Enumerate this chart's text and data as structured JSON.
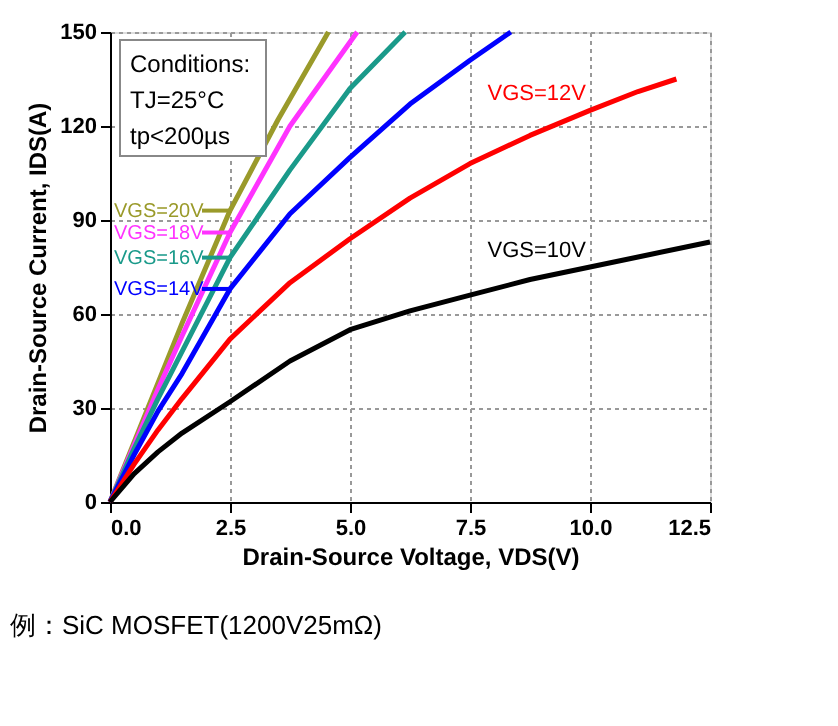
{
  "chart_data": {
    "type": "line",
    "xlabel": "Drain-Source Voltage, VDS(V)",
    "ylabel": "Drain-Source Current, IDS(A)",
    "xlim": [
      0,
      12.5
    ],
    "ylim": [
      0,
      150
    ],
    "xticks": [
      {
        "value": 0,
        "label": "0.0"
      },
      {
        "value": 2.5,
        "label": "2.5"
      },
      {
        "value": 5,
        "label": "5.0"
      },
      {
        "value": 7.5,
        "label": "7.5"
      },
      {
        "value": 10,
        "label": "10.0"
      },
      {
        "value": 12.5,
        "label": "12.5"
      }
    ],
    "yticks": [
      0,
      30,
      60,
      90,
      120,
      150
    ],
    "grid": true,
    "line_style": "solid",
    "legend": "left",
    "annotations": [
      "Conditions:",
      "TJ=25°C",
      "tp<200µs",
      "例：SiC MOSFET(1200V25mΩ)"
    ],
    "series": [
      {
        "name": "VGS=20V",
        "color": "#9a9a2a",
        "x": [
          0,
          0.5,
          1,
          1.5,
          2.5,
          3.5,
          4.55
        ],
        "values": [
          0,
          19,
          38,
          57,
          93,
          122,
          150
        ]
      },
      {
        "name": "VGS=18V",
        "color": "#ff33ff",
        "x": [
          0,
          0.5,
          1,
          1.5,
          2.5,
          3.75,
          5.15
        ],
        "values": [
          0,
          18,
          36,
          53,
          86,
          120,
          150
        ]
      },
      {
        "name": "VGS=16V",
        "color": "#1a9a8a",
        "x": [
          0,
          0.5,
          1,
          1.5,
          2.5,
          3.75,
          5,
          6.15
        ],
        "values": [
          0,
          17,
          33,
          48,
          78,
          106,
          132,
          150
        ]
      },
      {
        "name": "VGS=14V",
        "color": "#0000ff",
        "x": [
          0,
          0.5,
          1,
          1.5,
          2.5,
          3.75,
          5,
          6.25,
          7.5,
          8.35
        ],
        "values": [
          0,
          15,
          29,
          41,
          68,
          92,
          110,
          127,
          141,
          150
        ]
      },
      {
        "name": "VGS=12V",
        "color": "#ff0000",
        "x": [
          0,
          0.5,
          1,
          1.5,
          2.5,
          3.75,
          5,
          6.25,
          7.5,
          8.75,
          10,
          11,
          11.8
        ],
        "values": [
          0,
          12,
          23,
          33,
          52,
          70,
          84,
          97,
          108,
          117,
          125,
          131,
          135
        ]
      },
      {
        "name": "VGS=10V",
        "color": "#000000",
        "x": [
          0,
          0.5,
          1,
          1.5,
          2.5,
          3.75,
          5,
          6.25,
          7.5,
          8.75,
          10,
          11.25,
          12.5
        ],
        "values": [
          0,
          9,
          16,
          22,
          32,
          45,
          55,
          61,
          66,
          71,
          75,
          79,
          83
        ]
      }
    ]
  }
}
